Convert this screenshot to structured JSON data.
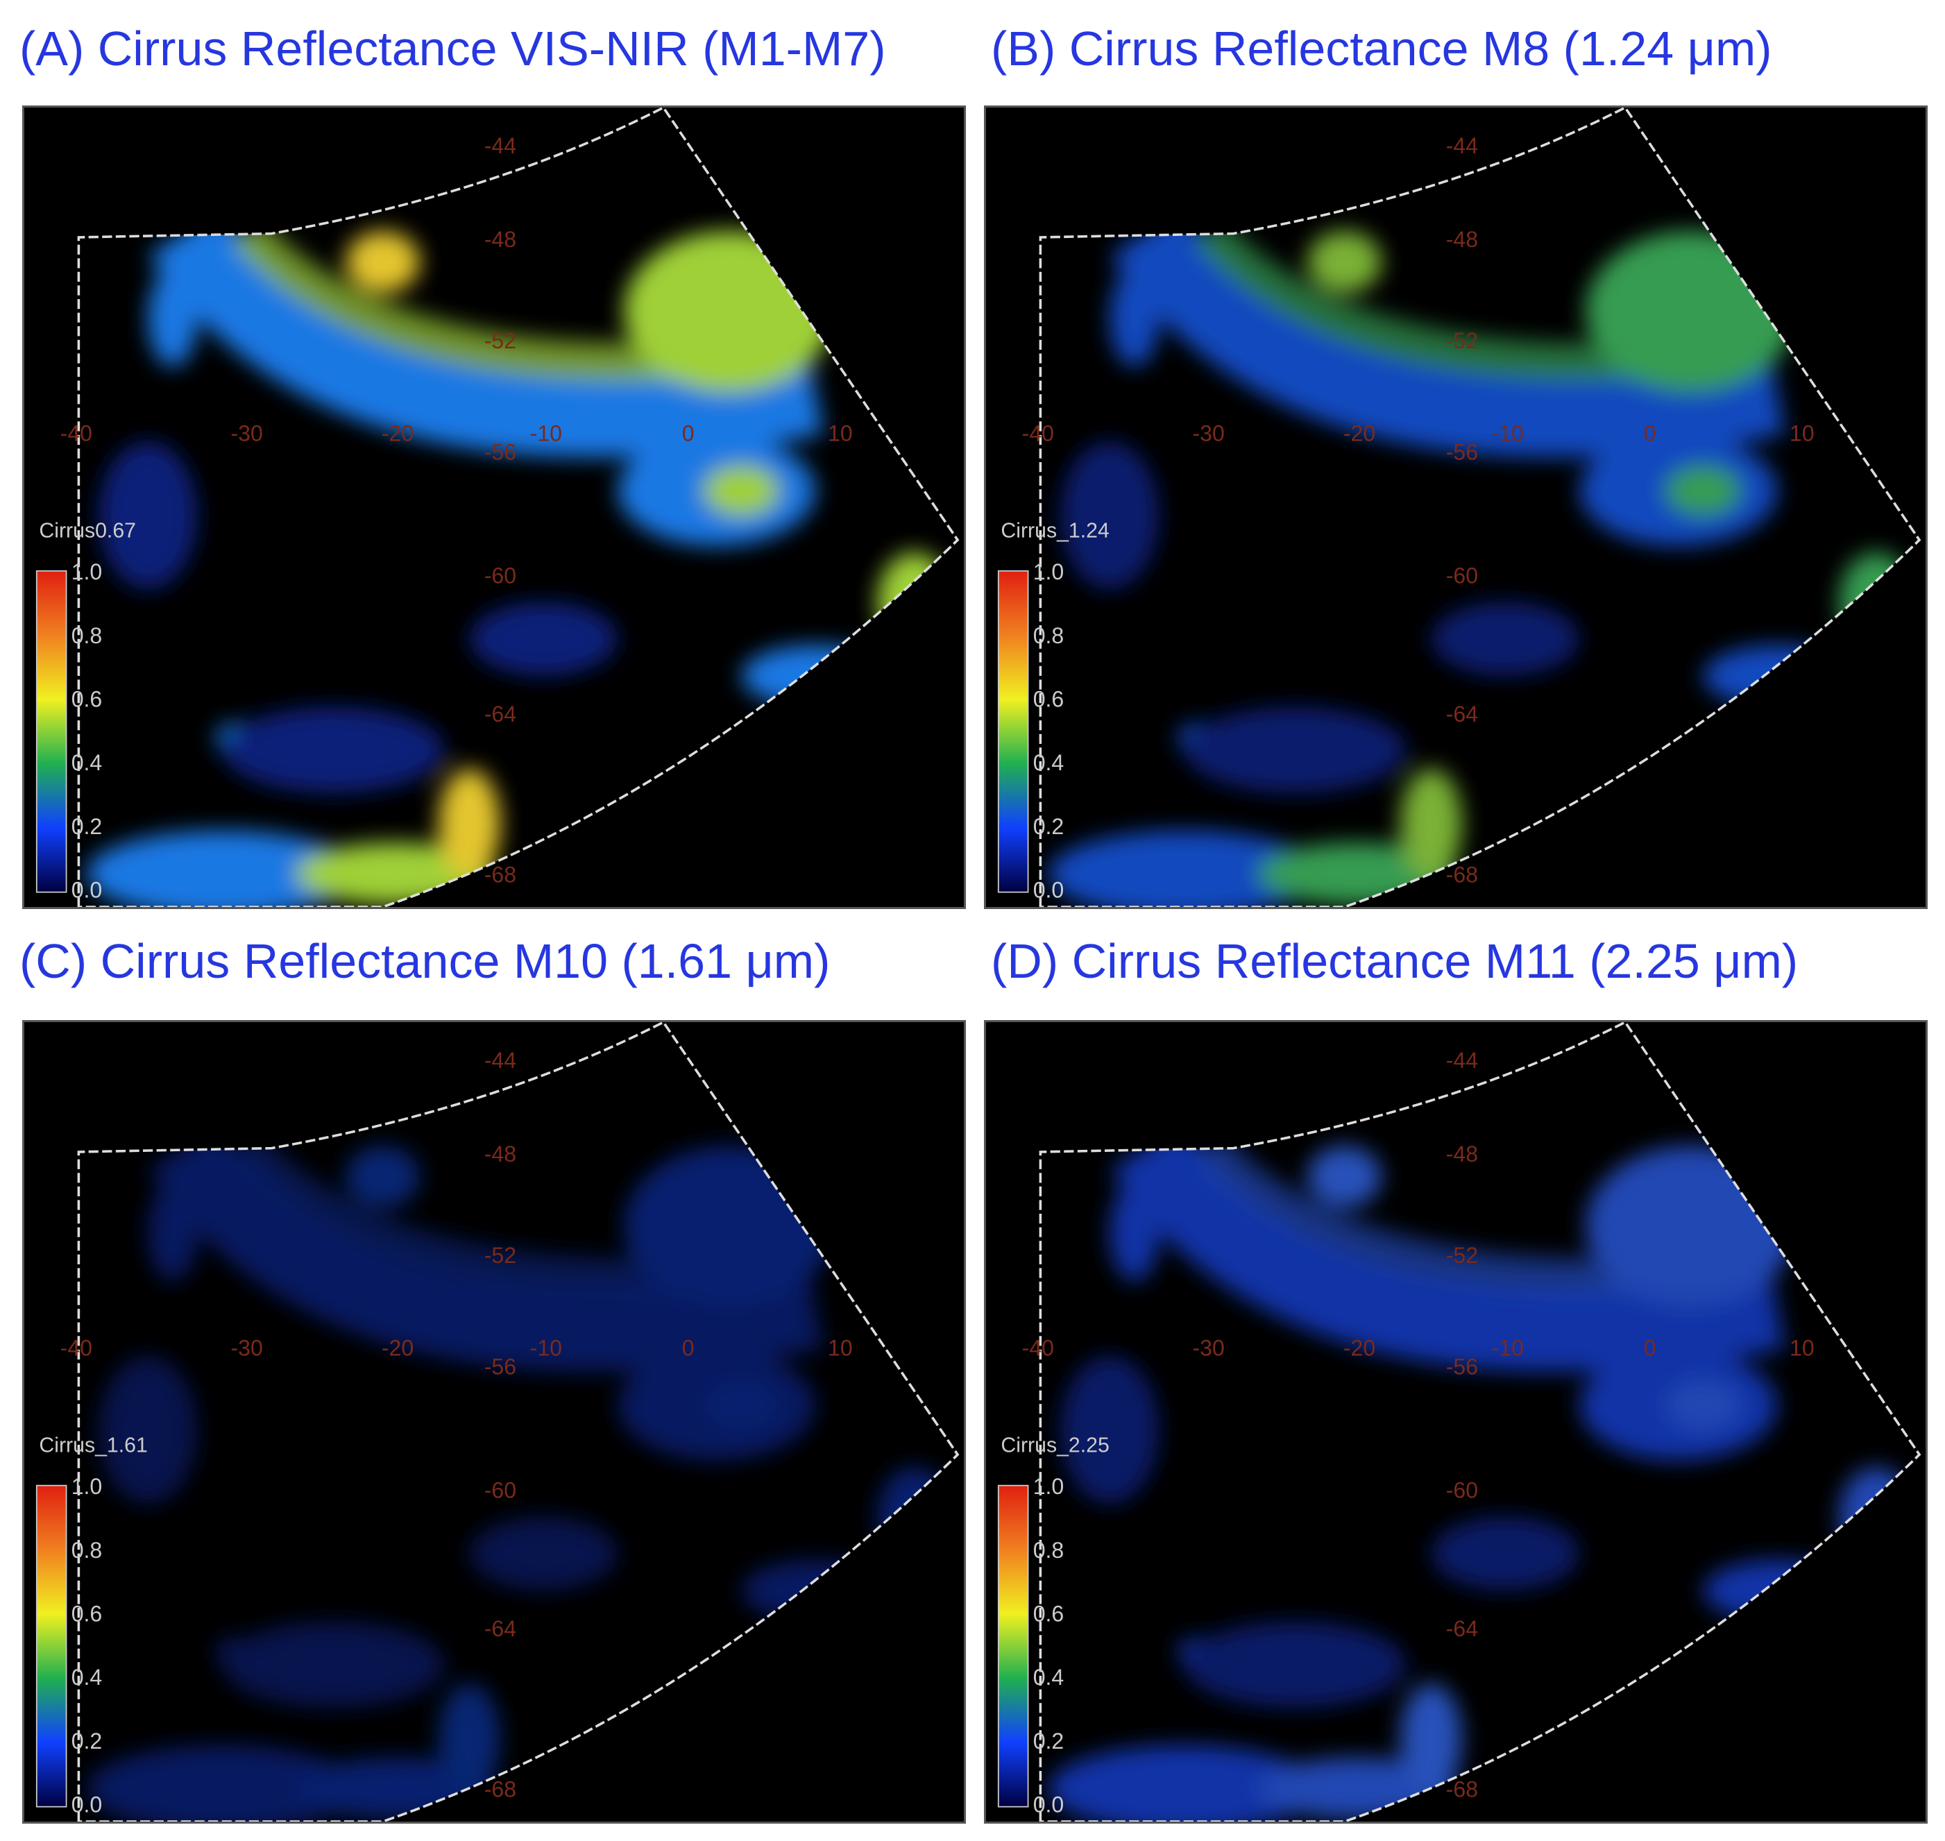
{
  "panels": [
    {
      "title": "(A) Cirrus Reflectance VIS-NIR (M1-M7)",
      "colorbar": {
        "label": "Cirrus0.67",
        "ticks": [
          "1.0",
          "0.8",
          "0.6",
          "0.4",
          "0.2",
          "0.0"
        ]
      }
    },
    {
      "title": "(B) Cirrus Reflectance M8 (1.24 μm)",
      "colorbar": {
        "label": "Cirrus_1.24",
        "ticks": [
          "1.0",
          "0.8",
          "0.6",
          "0.4",
          "0.2",
          "0.0"
        ]
      }
    },
    {
      "title": "(C) Cirrus Reflectance M10 (1.61 μm)",
      "colorbar": {
        "label": "Cirrus_1.61",
        "ticks": [
          "1.0",
          "0.8",
          "0.6",
          "0.4",
          "0.2",
          "0.0"
        ]
      }
    },
    {
      "title": "(D) Cirrus Reflectance M11 (2.25 μm)",
      "colorbar": {
        "label": "Cirrus_2.25",
        "ticks": [
          "1.0",
          "0.8",
          "0.6",
          "0.4",
          "0.2",
          "0.0"
        ]
      }
    }
  ],
  "lat_labels": [
    "-44",
    "-48",
    "-52",
    "-56",
    "-60",
    "-64",
    "-68"
  ],
  "lon_labels": [
    "-40",
    "-30",
    "-20",
    "-10",
    "0",
    "10"
  ]
}
